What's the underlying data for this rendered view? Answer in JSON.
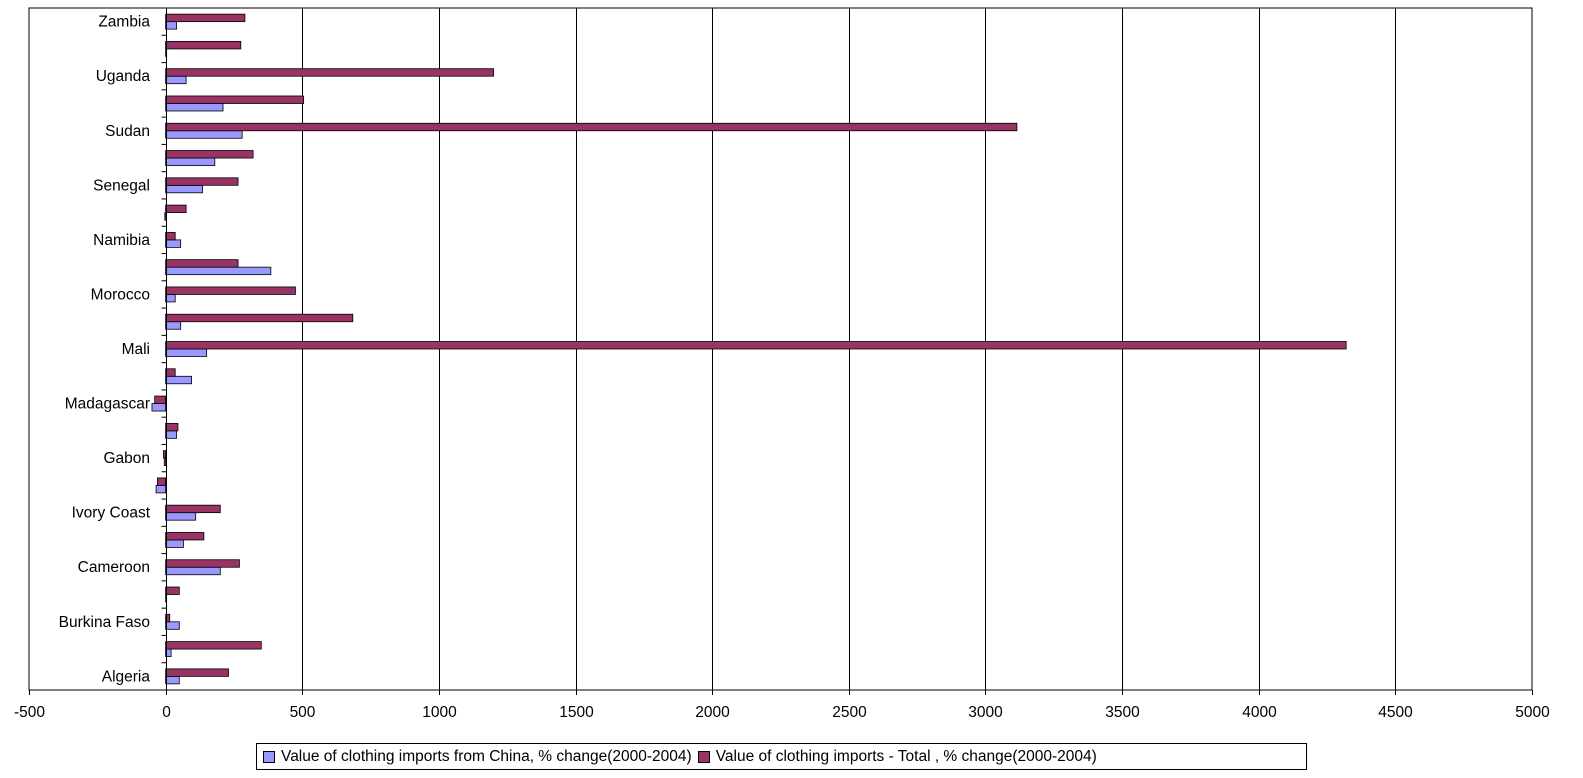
{
  "chart_data": {
    "type": "bar",
    "orientation": "horizontal",
    "xlim": [
      -500,
      5000
    ],
    "xticks": [
      -500,
      0,
      500,
      1000,
      1500,
      2000,
      2500,
      3000,
      3500,
      4000,
      4500,
      5000
    ],
    "xtick_labels": [
      "-500",
      "0",
      "500",
      "1000",
      "1500",
      "2000",
      "2500",
      "3000",
      "3500",
      "4000",
      "4500",
      "5000"
    ],
    "grid": "vertical",
    "legend_position": "bottom",
    "categories": [
      "Algeria",
      "",
      "Burkina Faso",
      "",
      "Cameroon",
      "",
      "Ivory Coast",
      "",
      "Gabon",
      "",
      "Madagascar",
      "",
      "Mali",
      "",
      "Morocco",
      "",
      "Namibia",
      "",
      "Senegal",
      "",
      "Sudan",
      "",
      "Uganda",
      "",
      "Zambia"
    ],
    "series": [
      {
        "name": "Value of clothing imports from China, % change(2000-2004)",
        "color": "#9999ff",
        "values": [
          50,
          20,
          50,
          2,
          200,
          65,
          110,
          -35,
          -5,
          40,
          -50,
          95,
          150,
          55,
          35,
          385,
          55,
          -3,
          135,
          180,
          280,
          210,
          75,
          3,
          40
        ]
      },
      {
        "name": "Value of clothing imports - Total , % change(2000-2004)",
        "color": "#993366",
        "values": [
          230,
          350,
          15,
          50,
          270,
          140,
          200,
          -30,
          -8,
          45,
          -40,
          35,
          4320,
          685,
          475,
          265,
          35,
          75,
          265,
          320,
          3115,
          505,
          1200,
          275,
          290
        ]
      }
    ]
  }
}
